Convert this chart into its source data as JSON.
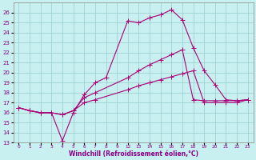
{
  "bg_color": "#c8f0f0",
  "line_color": "#aa0077",
  "grid_color": "#99cccc",
  "xlabel": "Windchill (Refroidissement éolien,°C)",
  "ylim": [
    13,
    27
  ],
  "yticks": [
    13,
    14,
    15,
    16,
    17,
    18,
    19,
    20,
    21,
    22,
    23,
    24,
    25,
    26
  ],
  "xtick_display": [
    "0",
    "1",
    "2",
    "3",
    "4",
    "5",
    "6",
    "7",
    "8",
    "9",
    "12",
    "13",
    "14",
    "15",
    "16",
    "17",
    "18",
    "19",
    "20",
    "21",
    "22",
    "23"
  ],
  "line1_xreal": [
    0,
    1,
    2,
    3,
    4,
    5,
    6,
    7,
    8,
    12,
    13,
    14,
    15,
    16,
    17,
    18,
    19,
    20,
    21,
    22,
    23
  ],
  "line1_y": [
    16.5,
    16.2,
    16.0,
    16.0,
    13.2,
    16.0,
    17.8,
    19.0,
    19.5,
    25.2,
    25.0,
    25.5,
    25.8,
    26.3,
    25.3,
    22.5,
    20.2,
    18.8,
    17.3,
    17.2,
    17.3
  ],
  "line2_xreal": [
    0,
    1,
    2,
    3,
    4,
    5,
    6,
    7,
    12,
    13,
    14,
    15,
    16,
    17,
    18,
    19,
    20,
    21,
    22,
    23
  ],
  "line2_y": [
    16.5,
    16.2,
    16.0,
    16.0,
    15.8,
    16.2,
    17.5,
    18.0,
    19.5,
    20.2,
    20.8,
    21.3,
    21.8,
    22.3,
    17.3,
    17.2,
    17.2,
    17.2,
    17.2,
    17.3
  ],
  "line3_xreal": [
    0,
    1,
    2,
    3,
    4,
    5,
    6,
    7,
    12,
    13,
    14,
    15,
    16,
    17,
    18,
    19,
    20,
    21,
    22,
    23
  ],
  "line3_y": [
    16.5,
    16.2,
    16.0,
    16.0,
    15.8,
    16.2,
    17.0,
    17.3,
    18.3,
    18.7,
    19.0,
    19.3,
    19.6,
    19.9,
    20.2,
    17.0,
    17.0,
    17.0,
    17.0,
    17.3
  ]
}
